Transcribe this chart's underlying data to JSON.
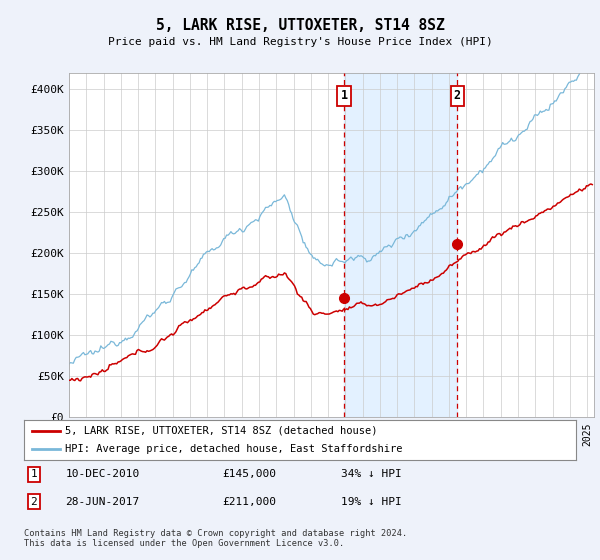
{
  "title": "5, LARK RISE, UTTOXETER, ST14 8SZ",
  "subtitle": "Price paid vs. HM Land Registry's House Price Index (HPI)",
  "ylim": [
    0,
    420000
  ],
  "yticks": [
    0,
    50000,
    100000,
    150000,
    200000,
    250000,
    300000,
    350000,
    400000
  ],
  "ytick_labels": [
    "£0",
    "£50K",
    "£100K",
    "£150K",
    "£200K",
    "£250K",
    "£300K",
    "£350K",
    "£400K"
  ],
  "hpi_color": "#7ab8d9",
  "price_color": "#cc0000",
  "marker1_date": 2010.94,
  "marker1_price": 145000,
  "marker2_date": 2017.49,
  "marker2_price": 211000,
  "legend_line1": "5, LARK RISE, UTTOXETER, ST14 8SZ (detached house)",
  "legend_line2": "HPI: Average price, detached house, East Staffordshire",
  "table_row1": [
    "1",
    "10-DEC-2010",
    "£145,000",
    "34% ↓ HPI"
  ],
  "table_row2": [
    "2",
    "28-JUN-2017",
    "£211,000",
    "19% ↓ HPI"
  ],
  "footer": "Contains HM Land Registry data © Crown copyright and database right 2024.\nThis data is licensed under the Open Government Licence v3.0.",
  "background_color": "#eef2fa",
  "plot_bg_color": "#ffffff",
  "span_color": "#dceeff",
  "grid_color": "#cccccc"
}
